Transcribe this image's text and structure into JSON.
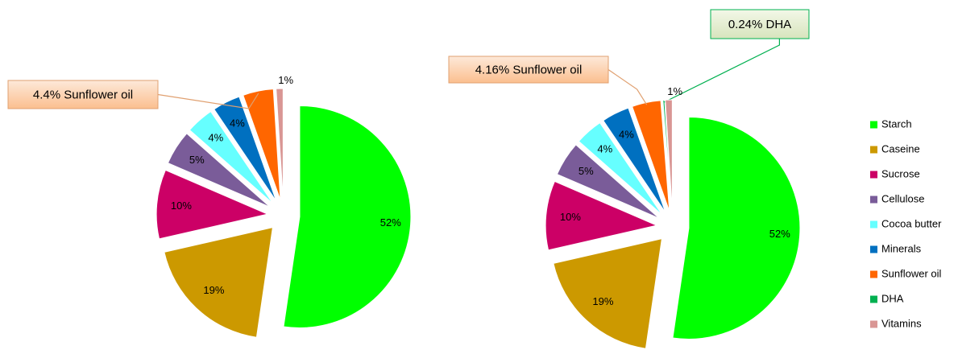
{
  "chart_data": [
    {
      "type": "pie",
      "categories": [
        "Starch",
        "Caseine",
        "Sucrose",
        "Cellulose",
        "Cocoa butter",
        "Minerals",
        "Sunflower oil",
        "Vitamins"
      ],
      "values": [
        52,
        19,
        10,
        5,
        4,
        4,
        4.4,
        1
      ],
      "value_labels": [
        "52%",
        "19%",
        "10%",
        "5%",
        "4%",
        "4%",
        "4.4% Sunflower oil",
        "1%"
      ],
      "colors": [
        "#00ff00",
        "#cc9900",
        "#cc0066",
        "#7a5c99",
        "#66ffff",
        "#0070c0",
        "#ff6600",
        "#d99694"
      ],
      "legend": false
    },
    {
      "type": "pie",
      "categories": [
        "Starch",
        "Caseine",
        "Sucrose",
        "Cellulose",
        "Cocoa butter",
        "Minerals",
        "Sunflower oil",
        "DHA",
        "Vitamins"
      ],
      "values": [
        52,
        19,
        10,
        5,
        4,
        4,
        4.16,
        0.24,
        1
      ],
      "value_labels": [
        "52%",
        "19%",
        "10%",
        "5%",
        "4%",
        "4%",
        "4.16% Sunflower oil",
        "0.24% DHA",
        "1%"
      ],
      "colors": [
        "#00ff00",
        "#cc9900",
        "#cc0066",
        "#7a5c99",
        "#66ffff",
        "#0070c0",
        "#ff6600",
        "#00b050",
        "#d99694"
      ],
      "legend": "right"
    }
  ]
}
